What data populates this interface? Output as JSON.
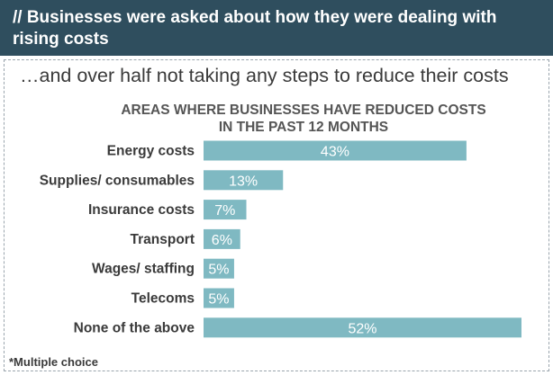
{
  "banner": {
    "line1": "// Businesses were asked about how they were dealing with",
    "line2": "rising costs"
  },
  "subtitle": "…and over half not taking any steps to reduce their costs",
  "footnote": "*Multiple choice",
  "chart_data": {
    "type": "bar",
    "orientation": "horizontal",
    "title_lines": [
      "AREAS WHERE BUSINESSES HAVE REDUCED COSTS",
      "IN THE PAST 12 MONTHS"
    ],
    "categories": [
      "Energy costs",
      "Supplies/ consumables",
      "Insurance costs",
      "Transport",
      "Wages/ staffing",
      "Telecoms",
      "None of the above"
    ],
    "values": [
      43,
      13,
      7,
      6,
      5,
      5,
      52
    ],
    "value_suffix": "%",
    "bar_color": "#7fb9c2",
    "label_color": "#ffffff",
    "xlim": [
      0,
      52
    ],
    "grid": false,
    "legend": "none"
  }
}
